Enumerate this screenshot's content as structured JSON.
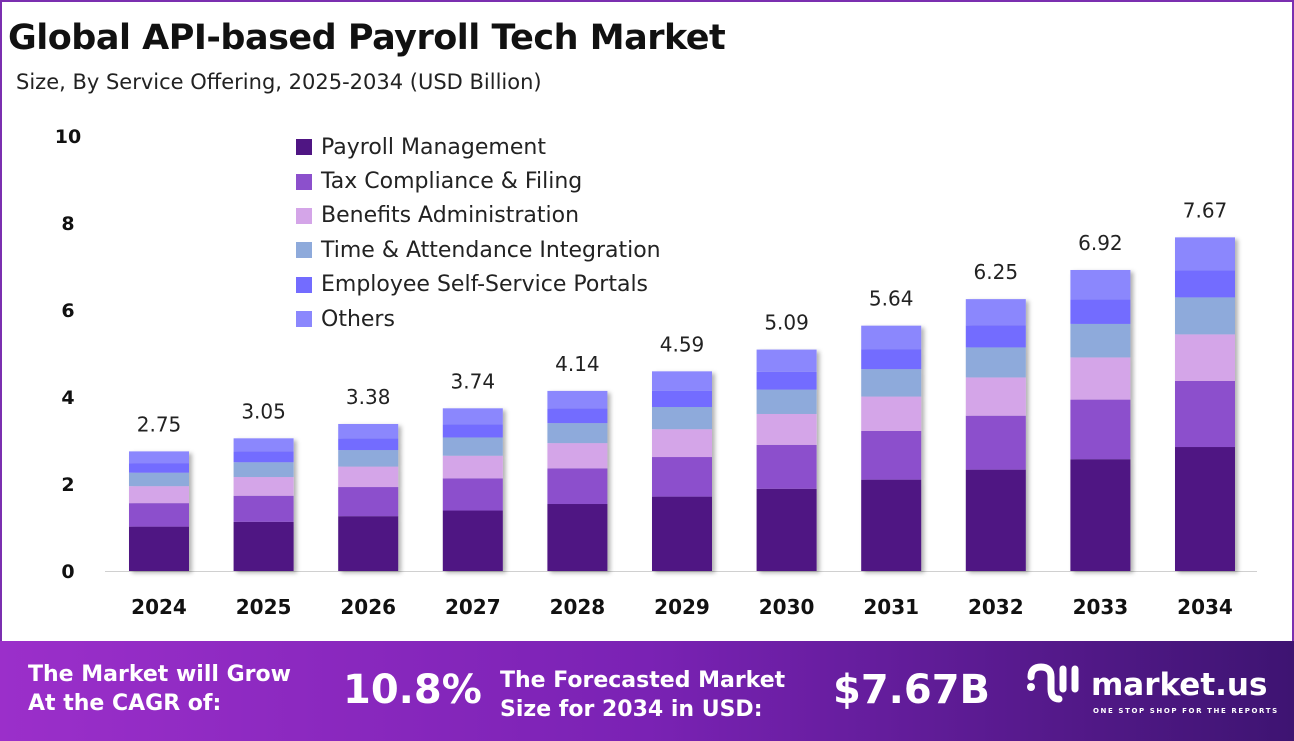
{
  "header": {
    "title": "Global API-based Payroll Tech Market",
    "subtitle": "Size, By Service Offering, 2025-2034 (USD Billion)"
  },
  "chart_data": {
    "type": "bar",
    "stacked": true,
    "categories": [
      "2024",
      "2025",
      "2026",
      "2027",
      "2028",
      "2029",
      "2030",
      "2031",
      "2032",
      "2033",
      "2034"
    ],
    "totals": [
      2.75,
      3.05,
      3.38,
      3.74,
      4.14,
      4.59,
      5.09,
      5.64,
      6.25,
      6.92,
      7.67
    ],
    "total_labels": [
      "2.75",
      "3.05",
      "3.38",
      "3.74",
      "4.14",
      "4.59",
      "5.09",
      "5.64",
      "6.25",
      "6.92",
      "7.67"
    ],
    "series": [
      {
        "name": "Payroll Management",
        "color": "#4f1583",
        "values": [
          1.02,
          1.13,
          1.26,
          1.39,
          1.54,
          1.71,
          1.89,
          2.1,
          2.33,
          2.57,
          2.85
        ]
      },
      {
        "name": "Tax Compliance & Filing",
        "color": "#8c50cc",
        "values": [
          0.54,
          0.6,
          0.67,
          0.74,
          0.82,
          0.91,
          1.01,
          1.12,
          1.24,
          1.37,
          1.52
        ]
      },
      {
        "name": "Benefits Administration",
        "color": "#d4a5e8",
        "values": [
          0.39,
          0.43,
          0.47,
          0.52,
          0.58,
          0.64,
          0.71,
          0.79,
          0.88,
          0.97,
          1.07
        ]
      },
      {
        "name": "Time & Attendance Integration",
        "color": "#8eaadb",
        "values": [
          0.31,
          0.34,
          0.38,
          0.42,
          0.46,
          0.51,
          0.56,
          0.63,
          0.69,
          0.77,
          0.85
        ]
      },
      {
        "name": "Employee Self-Service Portals",
        "color": "#736cff",
        "values": [
          0.22,
          0.25,
          0.27,
          0.3,
          0.34,
          0.37,
          0.41,
          0.46,
          0.51,
          0.56,
          0.62
        ]
      },
      {
        "name": "Others",
        "color": "#8b87fd",
        "values": [
          0.27,
          0.3,
          0.33,
          0.37,
          0.4,
          0.45,
          0.51,
          0.54,
          0.6,
          0.68,
          0.76
        ]
      }
    ],
    "ylim": [
      0,
      10
    ],
    "yticks": [
      "0",
      "2",
      "4",
      "6",
      "8",
      "10"
    ],
    "grid": false,
    "legend_position": "top-left"
  },
  "footer": {
    "cagr_label": "The Market will Grow At the CAGR of:",
    "cagr_value": "10.8%",
    "forecast_label": "The Forecasted Market Size for 2034 in USD:",
    "forecast_value": "$7.67B",
    "logo_text": "market.us",
    "logo_tagline": "ONE STOP SHOP FOR THE REPORTS"
  }
}
